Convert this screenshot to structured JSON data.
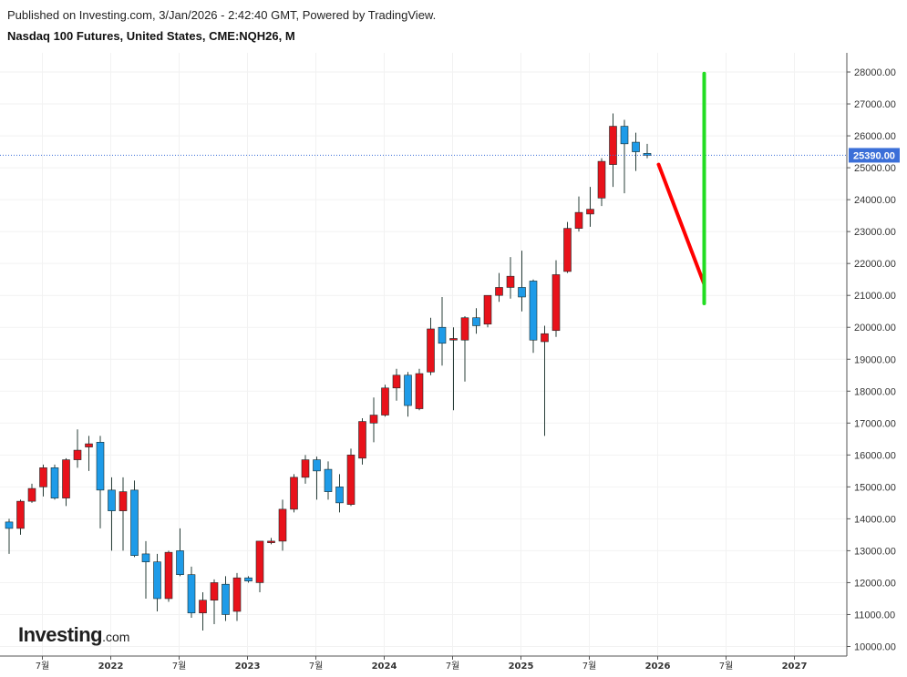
{
  "header": {
    "published": "Published on Investing.com, 3/Jan/2026 - 2:42:40 GMT, Powered by TradingView.",
    "title": "Nasdaq 100 Futures, United States, CME:NQH26, M"
  },
  "logo": {
    "word": "Investing",
    "suffix": ".com"
  },
  "colors": {
    "up": "#e8121b",
    "down": "#1e9be8",
    "wick": "#2a3f3a",
    "last_price": "#3b6fd8",
    "drawing_red": "#ff0000",
    "drawing_green": "#22dd22"
  },
  "chart_data": {
    "type": "candlestick",
    "interval": "monthly",
    "ylim": [
      9700,
      28600
    ],
    "y_ticks": [
      "10000.00",
      "11000.00",
      "12000.00",
      "13000.00",
      "14000.00",
      "15000.00",
      "16000.00",
      "17000.00",
      "18000.00",
      "19000.00",
      "20000.00",
      "21000.00",
      "22000.00",
      "23000.00",
      "24000.00",
      "25000.00",
      "26000.00",
      "27000.00",
      "28000.00"
    ],
    "x_ticks": [
      {
        "label": "7월",
        "at": "2021-07",
        "year": false
      },
      {
        "label": "2022",
        "at": "2022-01",
        "year": true
      },
      {
        "label": "7월",
        "at": "2022-07",
        "year": false
      },
      {
        "label": "2023",
        "at": "2023-01",
        "year": true
      },
      {
        "label": "7월",
        "at": "2023-07",
        "year": false
      },
      {
        "label": "2024",
        "at": "2024-01",
        "year": true
      },
      {
        "label": "7월",
        "at": "2024-07",
        "year": false
      },
      {
        "label": "2025",
        "at": "2025-01",
        "year": true
      },
      {
        "label": "7월",
        "at": "2025-07",
        "year": false
      },
      {
        "label": "2026",
        "at": "2026-01",
        "year": true
      },
      {
        "label": "7월",
        "at": "2026-07",
        "year": false
      },
      {
        "label": "2027",
        "at": "2027-01",
        "year": true
      }
    ],
    "last_price": "25390.00",
    "candles": [
      {
        "d": "2021-06",
        "o": 13900,
        "h": 14000,
        "l": 12900,
        "c": 13700
      },
      {
        "d": "2021-07",
        "o": 13700,
        "h": 14600,
        "l": 13500,
        "c": 14550
      },
      {
        "d": "2021-08",
        "o": 14550,
        "h": 15100,
        "l": 14500,
        "c": 14950
      },
      {
        "d": "2021-09",
        "o": 15000,
        "h": 15700,
        "l": 14700,
        "c": 15600
      },
      {
        "d": "2021-10",
        "o": 15600,
        "h": 15700,
        "l": 14600,
        "c": 14650
      },
      {
        "d": "2021-11",
        "o": 14650,
        "h": 15900,
        "l": 14400,
        "c": 15850
      },
      {
        "d": "2021-12",
        "o": 15850,
        "h": 16800,
        "l": 15600,
        "c": 16150
      },
      {
        "d": "2022-01",
        "o": 16250,
        "h": 16600,
        "l": 15500,
        "c": 16350
      },
      {
        "d": "2022-02",
        "o": 16400,
        "h": 16600,
        "l": 13700,
        "c": 14900
      },
      {
        "d": "2022-03",
        "o": 14900,
        "h": 15300,
        "l": 13000,
        "c": 14250
      },
      {
        "d": "2022-04",
        "o": 14250,
        "h": 15300,
        "l": 13000,
        "c": 14850
      },
      {
        "d": "2022-05",
        "o": 14900,
        "h": 15200,
        "l": 12800,
        "c": 12850
      },
      {
        "d": "2022-06",
        "o": 12900,
        "h": 13300,
        "l": 11500,
        "c": 12650
      },
      {
        "d": "2022-07",
        "o": 12650,
        "h": 12900,
        "l": 11100,
        "c": 11500
      },
      {
        "d": "2022-08",
        "o": 11500,
        "h": 13000,
        "l": 11400,
        "c": 12950
      },
      {
        "d": "2022-09",
        "o": 13000,
        "h": 13700,
        "l": 12200,
        "c": 12250
      },
      {
        "d": "2022-10",
        "o": 12250,
        "h": 12500,
        "l": 10900,
        "c": 11050
      },
      {
        "d": "2022-11",
        "o": 11050,
        "h": 11700,
        "l": 10500,
        "c": 11450
      },
      {
        "d": "2022-12",
        "o": 11450,
        "h": 12100,
        "l": 10700,
        "c": 12000
      },
      {
        "d": "2023-01",
        "o": 11950,
        "h": 12200,
        "l": 10800,
        "c": 11000
      },
      {
        "d": "2023-02",
        "o": 11100,
        "h": 12300,
        "l": 10800,
        "c": 12150
      },
      {
        "d": "2023-03",
        "o": 12150,
        "h": 12200,
        "l": 12000,
        "c": 12050
      },
      {
        "d": "2023-04",
        "o": 12000,
        "h": 13300,
        "l": 11700,
        "c": 13300
      },
      {
        "d": "2023-05",
        "o": 13250,
        "h": 13400,
        "l": 13200,
        "c": 13300
      },
      {
        "d": "2023-06",
        "o": 13300,
        "h": 14600,
        "l": 13000,
        "c": 14300
      },
      {
        "d": "2023-07",
        "o": 14300,
        "h": 15400,
        "l": 14200,
        "c": 15300
      },
      {
        "d": "2023-08",
        "o": 15300,
        "h": 16000,
        "l": 15100,
        "c": 15850
      },
      {
        "d": "2023-09",
        "o": 15850,
        "h": 15950,
        "l": 14600,
        "c": 15500
      },
      {
        "d": "2023-10",
        "o": 15550,
        "h": 15800,
        "l": 14600,
        "c": 14850
      },
      {
        "d": "2023-11",
        "o": 15000,
        "h": 15400,
        "l": 14200,
        "c": 14500
      },
      {
        "d": "2023-12",
        "o": 14450,
        "h": 16200,
        "l": 14400,
        "c": 16000
      },
      {
        "d": "2024-01",
        "o": 15900,
        "h": 17150,
        "l": 15700,
        "c": 17050
      },
      {
        "d": "2024-02",
        "o": 17000,
        "h": 17800,
        "l": 16400,
        "c": 17250
      },
      {
        "d": "2024-03",
        "o": 17250,
        "h": 18200,
        "l": 17200,
        "c": 18100
      },
      {
        "d": "2024-04",
        "o": 18100,
        "h": 18700,
        "l": 17700,
        "c": 18500
      },
      {
        "d": "2024-05",
        "o": 18500,
        "h": 18600,
        "l": 17200,
        "c": 17550
      },
      {
        "d": "2024-06",
        "o": 17450,
        "h": 18700,
        "l": 17400,
        "c": 18550
      },
      {
        "d": "2024-07",
        "o": 18600,
        "h": 20300,
        "l": 18500,
        "c": 19950
      },
      {
        "d": "2024-08",
        "o": 20000,
        "h": 20950,
        "l": 18800,
        "c": 19500
      },
      {
        "d": "2024-09",
        "o": 19600,
        "h": 20000,
        "l": 17400,
        "c": 19650
      },
      {
        "d": "2024-10",
        "o": 19600,
        "h": 20350,
        "l": 18300,
        "c": 20300
      },
      {
        "d": "2024-11",
        "o": 20300,
        "h": 20600,
        "l": 19800,
        "c": 20050
      },
      {
        "d": "2024-12",
        "o": 20100,
        "h": 21000,
        "l": 20000,
        "c": 21000
      },
      {
        "d": "2025-01",
        "o": 21000,
        "h": 21700,
        "l": 20800,
        "c": 21250
      },
      {
        "d": "2025-02",
        "o": 21250,
        "h": 22200,
        "l": 20900,
        "c": 21600
      },
      {
        "d": "2025-03",
        "o": 21250,
        "h": 22400,
        "l": 20500,
        "c": 20950
      },
      {
        "d": "2025-04",
        "o": 21450,
        "h": 21500,
        "l": 19200,
        "c": 19600
      },
      {
        "d": "2025-05",
        "o": 19550,
        "h": 20050,
        "l": 16600,
        "c": 19800
      },
      {
        "d": "2025-06",
        "o": 19900,
        "h": 22100,
        "l": 19700,
        "c": 21650
      },
      {
        "d": "2025-07",
        "o": 21750,
        "h": 23300,
        "l": 21700,
        "c": 23100
      },
      {
        "d": "2025-08",
        "o": 23100,
        "h": 24100,
        "l": 23000,
        "c": 23600
      },
      {
        "d": "2025-09",
        "o": 23550,
        "h": 24400,
        "l": 23150,
        "c": 23700
      },
      {
        "d": "2025-10",
        "o": 24050,
        "h": 25300,
        "l": 23800,
        "c": 25200
      },
      {
        "d": "2025-11",
        "o": 25100,
        "h": 26700,
        "l": 24400,
        "c": 26300
      },
      {
        "d": "2025-12",
        "o": 26300,
        "h": 26500,
        "l": 24200,
        "c": 25750
      },
      {
        "d": "2026-01",
        "o": 25800,
        "h": 26100,
        "l": 24900,
        "c": 25500
      },
      {
        "d": "2026-02",
        "o": 25450,
        "h": 25750,
        "l": 25300,
        "c": 25390
      }
    ],
    "drawings": [
      {
        "type": "line",
        "color": "red",
        "from": {
          "d": "2026-03",
          "v": 25100
        },
        "to": {
          "d": "2026-07",
          "v": 21350
        }
      },
      {
        "type": "line",
        "color": "green",
        "from": {
          "d": "2026-07",
          "v": 20750
        },
        "to": {
          "d": "2026-07",
          "v": 27950
        }
      }
    ]
  }
}
